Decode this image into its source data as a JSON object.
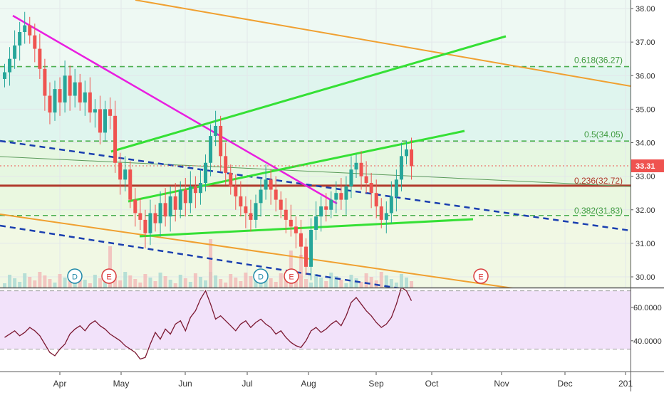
{
  "chart_data": [
    {
      "type": "candlestick",
      "price_axis": {
        "ticks": [
          "38.00",
          "37.00",
          "36.00",
          "35.00",
          "34.00",
          "33.00",
          "32.00",
          "31.00",
          "30.00"
        ],
        "range": [
          29.7,
          38.2
        ],
        "last_price": "33.31",
        "last_value": 33.31,
        "last_color": "#ef5350"
      },
      "time_axis": {
        "labels": [
          "Apr",
          "May",
          "Jun",
          "Jul",
          "Aug",
          "Sep",
          "Oct",
          "Nov",
          "Dec",
          "201"
        ]
      },
      "fib_levels": [
        {
          "label": "0.618(36.27)",
          "value": 36.27
        },
        {
          "label": "0.5(34.05)",
          "value": 34.05
        },
        {
          "label": "0.236(32.72)",
          "value": 32.72
        },
        {
          "label": "0.382(31.83)",
          "value": 31.83
        }
      ],
      "candles_close": [
        36.1,
        36.5,
        36.9,
        37.3,
        37.5,
        37.2,
        36.8,
        36.2,
        35.4,
        34.9,
        35.6,
        35.2,
        36.0,
        35.4,
        35.8,
        35.2,
        35.5,
        34.9,
        35.0,
        34.3,
        35.0,
        34.8,
        33.4,
        32.9,
        33.2,
        32.3,
        31.9,
        31.7,
        31.3,
        31.9,
        31.6,
        32.2,
        31.8,
        32.4,
        32.0,
        32.6,
        32.2,
        32.7,
        32.5,
        32.8,
        33.4,
        34.2,
        34.5,
        33.6,
        33.1,
        32.7,
        32.4,
        32.1,
        31.9,
        31.7,
        32.2,
        32.6,
        32.9,
        32.6,
        32.3,
        32.0,
        31.7,
        31.5,
        31.3,
        30.9,
        30.3,
        31.4,
        31.8,
        32.1,
        32.0,
        32.3,
        32.5,
        32.3,
        32.7,
        33.2,
        33.4,
        33.0,
        32.8,
        32.5,
        32.1,
        31.7,
        31.9,
        32.4,
        32.9,
        33.6,
        33.8,
        33.3
      ],
      "events": [
        {
          "letter": "D",
          "type": "dividend"
        },
        {
          "letter": "E",
          "type": "earnings"
        },
        {
          "letter": "D",
          "type": "dividend"
        },
        {
          "letter": "E",
          "type": "earnings"
        },
        {
          "letter": "E",
          "type": "earnings"
        }
      ]
    },
    {
      "type": "line",
      "indicator": "RSI",
      "axis_ticks": [
        "60.0000",
        "40.0000"
      ],
      "range": [
        27,
        75
      ],
      "band": [
        70,
        35
      ],
      "values": [
        42,
        44,
        46,
        43,
        45,
        48,
        46,
        43,
        38,
        33,
        31,
        35,
        38,
        44,
        47,
        49,
        46,
        50,
        52,
        49,
        47,
        44,
        42,
        40,
        37,
        35,
        33,
        29,
        30,
        38,
        45,
        41,
        47,
        44,
        50,
        52,
        46,
        54,
        58,
        65,
        70,
        62,
        53,
        55,
        52,
        49,
        46,
        50,
        52,
        48,
        51,
        53,
        50,
        48,
        44,
        46,
        42,
        39,
        37,
        36,
        40,
        46,
        48,
        45,
        47,
        50,
        52,
        49,
        55,
        63,
        66,
        62,
        58,
        55,
        51,
        48,
        50,
        54,
        62,
        72,
        70,
        64
      ]
    }
  ],
  "colors": {
    "rsi_line": "#7b1730",
    "rsi_band_fill": "#f2e2fa",
    "fib_line": "#4caf50",
    "magenta_trend": "#e91ee0",
    "green_channel": "#35e035",
    "orange_channel": "#f0a030",
    "blue_dashed": "#1a3fb0",
    "level_line": "#b0392b",
    "candle_up": "#26a69a",
    "candle_down": "#ef5350"
  }
}
